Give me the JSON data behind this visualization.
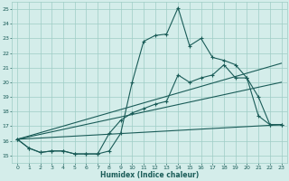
{
  "xlabel": "Humidex (Indice chaleur)",
  "xlim": [
    -0.5,
    23.5
  ],
  "ylim": [
    14.5,
    25.5
  ],
  "yticks": [
    15,
    16,
    17,
    18,
    19,
    20,
    21,
    22,
    23,
    24,
    25
  ],
  "xticks": [
    0,
    1,
    2,
    3,
    4,
    5,
    6,
    7,
    8,
    9,
    10,
    11,
    12,
    13,
    14,
    15,
    16,
    17,
    18,
    19,
    20,
    21,
    22,
    23
  ],
  "background_color": "#d4edea",
  "grid_color": "#9ecdc6",
  "line_color": "#1a5c58",
  "series_jagged": {
    "x": [
      0,
      1,
      2,
      3,
      4,
      5,
      6,
      7,
      8,
      9,
      10,
      11,
      12,
      13,
      14,
      15,
      16,
      17,
      18,
      19,
      20,
      21,
      22,
      23
    ],
    "y": [
      16.1,
      15.5,
      15.2,
      15.3,
      15.3,
      15.1,
      15.1,
      15.1,
      15.3,
      16.5,
      20.0,
      22.8,
      23.2,
      23.3,
      25.1,
      22.5,
      23.0,
      21.7,
      21.5,
      21.2,
      20.3,
      19.0,
      17.1,
      17.1
    ]
  },
  "series_smooth": {
    "x": [
      0,
      1,
      2,
      3,
      4,
      5,
      6,
      7,
      8,
      9,
      10,
      11,
      12,
      13,
      14,
      15,
      16,
      17,
      18,
      19,
      20,
      21,
      22,
      23
    ],
    "y": [
      16.1,
      15.5,
      15.2,
      15.3,
      15.3,
      15.1,
      15.1,
      15.1,
      16.5,
      17.4,
      17.9,
      18.2,
      18.5,
      18.7,
      20.5,
      20.0,
      20.3,
      20.5,
      21.2,
      20.3,
      20.3,
      17.7,
      17.1,
      17.1
    ]
  },
  "linear_lines": [
    {
      "x": [
        0,
        23
      ],
      "y": [
        16.1,
        21.3
      ]
    },
    {
      "x": [
        0,
        23
      ],
      "y": [
        16.1,
        20.0
      ]
    },
    {
      "x": [
        0,
        23
      ],
      "y": [
        16.1,
        17.1
      ]
    }
  ]
}
